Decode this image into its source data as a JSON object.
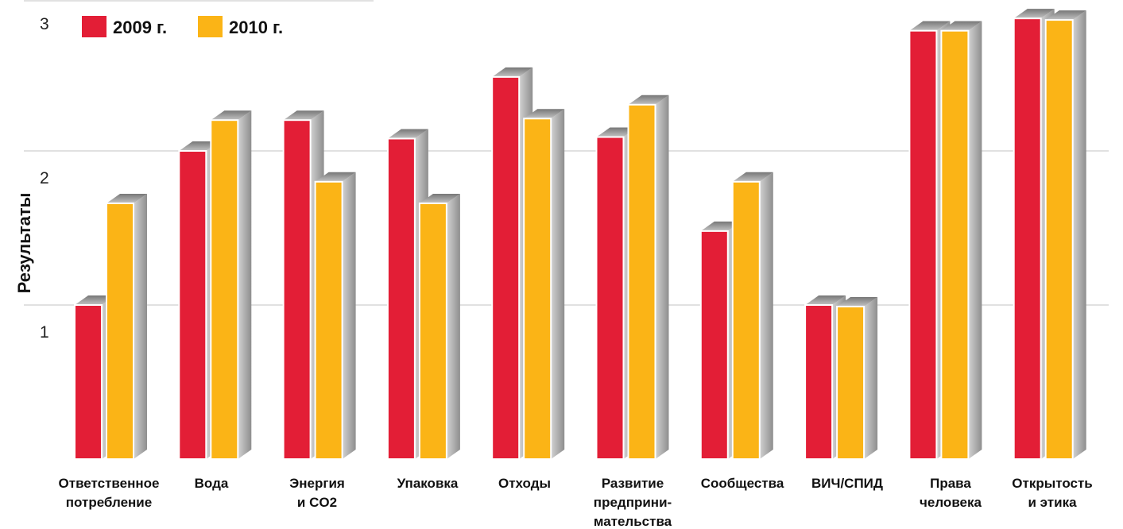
{
  "chart_data": {
    "type": "bar",
    "ylabel": "Результаты",
    "ylim": [
      0,
      3
    ],
    "yticks": [
      "1",
      "2",
      "3"
    ],
    "grid": true,
    "legend_position": "top-left",
    "categories": [
      [
        "Ответственное",
        "потребление"
      ],
      [
        "Вода"
      ],
      [
        "Энергия",
        "и CO2"
      ],
      [
        "Упаковка"
      ],
      [
        "Отходы"
      ],
      [
        "Развитие",
        "предприни-",
        "мательства"
      ],
      [
        "Сообщества"
      ],
      [
        "ВИЧ/СПИД"
      ],
      [
        "Права",
        "человека"
      ],
      [
        "Открытость",
        "и этика"
      ]
    ],
    "series": [
      {
        "name": "2009 г.",
        "color": "#e31e36",
        "values": [
          1.0,
          2.0,
          2.2,
          2.08,
          2.48,
          2.09,
          1.48,
          1.0,
          2.78,
          2.86
        ]
      },
      {
        "name": "2010 г.",
        "color": "#fbb416",
        "values": [
          1.66,
          2.2,
          1.8,
          1.66,
          2.21,
          2.3,
          1.8,
          0.99,
          2.78,
          2.85
        ]
      }
    ]
  }
}
